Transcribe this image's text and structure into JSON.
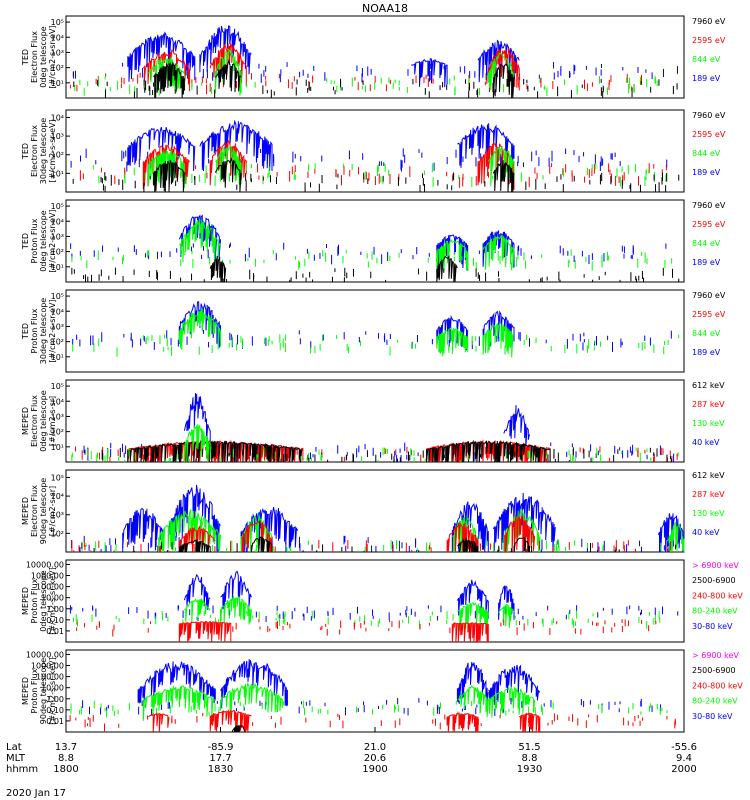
{
  "title": "NOAA18",
  "date_label": "2020 Jan 17",
  "colors": {
    "blue": "#0000ff",
    "red": "#ff0000",
    "green": "#00ff00",
    "black": "#000000",
    "magenta": "#ff00ff"
  },
  "x_axis": {
    "rows": [
      {
        "name": "Lat",
        "values": [
          "13.7",
          "-85.9",
          "21.0",
          "51.5",
          "-55.6"
        ]
      },
      {
        "name": "MLT",
        "values": [
          "8.8",
          "17.7",
          "20.6",
          "8.8",
          "9.4"
        ]
      },
      {
        "name": "hhmm",
        "values": [
          "1800",
          "1830",
          "1900",
          "1930",
          "2000"
        ]
      }
    ],
    "hhmm_range": [
      1800,
      2000
    ]
  },
  "chart_data": [
    {
      "type": "line",
      "panel": 1,
      "ylabel": [
        "TED",
        "Electron Flux",
        "0deg telescope",
        "[#/cm2-s-sr-eV]"
      ],
      "yscale": "log",
      "yticks": [
        "10¹",
        "10²",
        "10³",
        "10⁴",
        "10⁵"
      ],
      "ylim_exp": [
        0,
        5
      ],
      "legend": [
        {
          "text": "7960 eV",
          "color": "black"
        },
        {
          "text": "2595 eV",
          "color": "red"
        },
        {
          "text": "844 eV",
          "color": "green"
        },
        {
          "text": "189 eV",
          "color": "blue"
        }
      ],
      "series": [
        {
          "color": "blue",
          "bursts": [
            [
              1812,
              1825,
              4.0
            ],
            [
              1826,
              1836,
              4.5
            ],
            [
              1907,
              1914,
              2.4
            ],
            [
              1920,
              1928,
              3.5
            ]
          ],
          "bg": 1.8
        },
        {
          "color": "red",
          "bursts": [
            [
              1815,
              1824,
              3.0
            ],
            [
              1828,
              1835,
              3.4
            ],
            [
              1922,
              1928,
              3.2
            ]
          ],
          "bg": 1.2
        },
        {
          "color": "green",
          "bursts": [
            [
              1816,
              1823,
              2.6
            ],
            [
              1829,
              1834,
              3.0
            ],
            [
              1922,
              1927,
              2.8
            ]
          ],
          "bg": 1.0
        },
        {
          "color": "black",
          "bursts": [
            [
              1817,
              1823,
              2.2
            ],
            [
              1829,
              1834,
              2.3
            ],
            [
              1923,
              1927,
              2.2
            ]
          ],
          "bg": 0.8
        }
      ]
    },
    {
      "type": "line",
      "panel": 2,
      "ylabel": [
        "TED",
        "Electron Flux",
        "30deg telescope",
        "[#/cm2-s-sr-eV]"
      ],
      "yscale": "log",
      "yticks": [
        "10¹",
        "10²",
        "10³",
        "10⁴"
      ],
      "ylim_exp": [
        0,
        4.5
      ],
      "legend": [
        {
          "text": "7960 eV",
          "color": "black"
        },
        {
          "text": "2595 eV",
          "color": "red"
        },
        {
          "text": "844 eV",
          "color": "green"
        },
        {
          "text": "189 eV",
          "color": "blue"
        }
      ],
      "series": [
        {
          "color": "blue",
          "bursts": [
            [
              1812,
              1825,
              3.6
            ],
            [
              1826,
              1840,
              3.9
            ],
            [
              1916,
              1927,
              3.8
            ]
          ],
          "bg": 2.0
        },
        {
          "color": "red",
          "bursts": [
            [
              1815,
              1824,
              2.6
            ],
            [
              1828,
              1835,
              2.9
            ],
            [
              1920,
              1927,
              2.7
            ]
          ],
          "bg": 1.2
        },
        {
          "color": "green",
          "bursts": [
            [
              1816,
              1823,
              2.4
            ],
            [
              1829,
              1834,
              2.6
            ],
            [
              1922,
              1927,
              2.6
            ]
          ],
          "bg": 1.2
        },
        {
          "color": "black",
          "bursts": [
            [
              1817,
              1823,
              1.8
            ],
            [
              1829,
              1834,
              1.9
            ],
            [
              1923,
              1927,
              1.8
            ]
          ],
          "bg": 0.7
        }
      ]
    },
    {
      "type": "line",
      "panel": 3,
      "ylabel": [
        "TED",
        "Proton Flux",
        "0deg telescope",
        "[#/cm2-s-sr-eV]"
      ],
      "yscale": "log",
      "yticks": [
        "10¹",
        "10²",
        "10³",
        "10⁴",
        "10⁵"
      ],
      "ylim_exp": [
        0,
        5
      ],
      "legend": [
        {
          "text": "7960 eV",
          "color": "black"
        },
        {
          "text": "2595 eV",
          "color": "red"
        },
        {
          "text": "844 eV",
          "color": "green"
        },
        {
          "text": "189 eV",
          "color": "blue"
        }
      ],
      "series": [
        {
          "color": "blue",
          "bursts": [
            [
              1822,
              1830,
              4.2
            ],
            [
              1912,
              1918,
              2.9
            ],
            [
              1921,
              1927,
              3.2
            ]
          ],
          "bg": 2.0
        },
        {
          "color": "green",
          "bursts": [
            [
              1822,
              1830,
              3.9
            ],
            [
              1912,
              1918,
              2.6
            ],
            [
              1921,
              1927,
              2.9
            ]
          ],
          "bg": 1.6
        },
        {
          "color": "black",
          "bursts": [
            [
              1828,
              1831,
              1.6
            ],
            [
              1912,
              1916,
              1.6
            ]
          ],
          "bg": 0.5
        }
      ]
    },
    {
      "type": "line",
      "panel": 4,
      "ylabel": [
        "TED",
        "Proton Flux",
        "30deg telescope",
        "[#/cm2-s-sr-eV]"
      ],
      "yscale": "log",
      "yticks": [
        "10¹",
        "10²",
        "10³",
        "10⁴",
        "10⁵"
      ],
      "ylim_exp": [
        0,
        5
      ],
      "legend": [
        {
          "text": "7960 eV",
          "color": "black"
        },
        {
          "text": "2595 eV",
          "color": "red"
        },
        {
          "text": "844 eV",
          "color": "green"
        },
        {
          "text": "189 eV",
          "color": "blue"
        }
      ],
      "series": [
        {
          "color": "blue",
          "bursts": [
            [
              1822,
              1830,
              4.3
            ],
            [
              1912,
              1918,
              3.4
            ],
            [
              1921,
              1927,
              3.7
            ]
          ],
          "bg": 2.2
        },
        {
          "color": "green",
          "bursts": [
            [
              1822,
              1830,
              3.9
            ],
            [
              1912,
              1918,
              2.7
            ],
            [
              1921,
              1927,
              3.0
            ]
          ],
          "bg": 1.9
        }
      ]
    },
    {
      "type": "line",
      "panel": 5,
      "ylabel": [
        "MEPED",
        "Electron Flux",
        "0deg telescope",
        "[#/cm2-s-sr]"
      ],
      "yscale": "log",
      "yticks": [
        "10¹",
        "10²",
        "10³",
        "10⁴",
        "10⁵"
      ],
      "ylim_exp": [
        0.5,
        5.5
      ],
      "legend": [
        {
          "text": "612 keV",
          "color": "black"
        },
        {
          "text": "287 keV",
          "color": "red"
        },
        {
          "text": "130 keV",
          "color": "green"
        },
        {
          "text": "40 keV",
          "color": "blue"
        }
      ],
      "series": [
        {
          "color": "blue",
          "bursts": [
            [
              1823,
              1828,
              4.8
            ],
            [
              1925,
              1930,
              4.0
            ]
          ],
          "bg": 1.3
        },
        {
          "color": "red",
          "bursts": [
            [
              1812,
              1846,
              1.8
            ],
            [
              1910,
              1934,
              1.8
            ]
          ],
          "bg": 1.1
        },
        {
          "color": "black",
          "bursts": [
            [
              1812,
              1846,
              1.8
            ],
            [
              1910,
              1934,
              1.8
            ]
          ],
          "bg": 1.0
        },
        {
          "color": "green",
          "bursts": [
            [
              1823,
              1828,
              2.9
            ]
          ],
          "bg": 1.0
        }
      ]
    },
    {
      "type": "line",
      "panel": 6,
      "ylabel": [
        "MEPED",
        "Electron Flux",
        "90deg telescope",
        "[#/cm2-s-sr]"
      ],
      "yscale": "log",
      "yticks": [
        "10²",
        "10³",
        "10⁴",
        "10⁵"
      ],
      "ylim_exp": [
        1.5,
        5.5
      ],
      "legend": [
        {
          "text": "612 keV",
          "color": "black"
        },
        {
          "text": "287 keV",
          "color": "red"
        },
        {
          "text": "130 keV",
          "color": "green"
        },
        {
          "text": "40 keV",
          "color": "blue"
        }
      ],
      "series": [
        {
          "color": "blue",
          "bursts": [
            [
              1811,
              1819,
              3.7
            ],
            [
              1820,
              1830,
              4.8
            ],
            [
              1834,
              1845,
              3.8
            ],
            [
              1915,
              1922,
              4.0
            ],
            [
              1923,
              1935,
              4.4
            ],
            [
              1955,
              2000,
              3.5
            ]
          ],
          "bg": 1.9
        },
        {
          "color": "green",
          "bursts": [
            [
              1818,
              1830,
              3.6
            ],
            [
              1834,
              1840,
              3.4
            ],
            [
              1915,
              1920,
              3.3
            ],
            [
              1925,
              1932,
              3.6
            ],
            [
              1957,
              2000,
              3.0
            ]
          ],
          "bg": 1.7
        },
        {
          "color": "red",
          "bursts": [
            [
              1822,
              1829,
              2.8
            ],
            [
              1834,
              1840,
              3.2
            ],
            [
              1914,
              1920,
              3.0
            ],
            [
              1925,
              1931,
              3.4
            ]
          ],
          "bg": 1.7
        },
        {
          "color": "black",
          "bursts": [
            [
              1822,
              1828,
              2.1
            ],
            [
              1836,
              1840,
              2.3
            ],
            [
              1916,
              1920,
              2.2
            ],
            [
              1927,
              1930,
              2.3
            ]
          ],
          "bg": 1.6
        }
      ]
    },
    {
      "type": "line",
      "panel": 7,
      "ylabel": [
        "MEPED",
        "Proton Flux",
        "0deg telescope",
        "[#/cm2-s-sr-keV]"
      ],
      "yscale": "log",
      "yticks": [
        "0.01",
        "0.10",
        "1.00",
        "10.00",
        "100.00",
        "1000.00",
        "10000.00"
      ],
      "ylim_exp": [
        -2,
        4
      ],
      "legend": [
        {
          "text": "> 6900 keV",
          "color": "magenta"
        },
        {
          "text": "2500-6900",
          "color": "black"
        },
        {
          "text": "240-800 keV",
          "color": "red"
        },
        {
          "text": "80-240 keV",
          "color": "green"
        },
        {
          "text": "30-80 keV",
          "color": "blue"
        }
      ],
      "series": [
        {
          "color": "blue",
          "bursts": [
            [
              1823,
              1828,
              3.0
            ],
            [
              1830,
              1836,
              3.2
            ],
            [
              1916,
              1922,
              2.6
            ],
            [
              1924,
              1927,
              2.3
            ]
          ],
          "bg": 0.3
        },
        {
          "color": "green",
          "bursts": [
            [
              1823,
              1828,
              1.3
            ],
            [
              1830,
              1836,
              1.4
            ],
            [
              1916,
              1922,
              0.9
            ],
            [
              1924,
              1927,
              0.8
            ]
          ],
          "bg": -0.1
        },
        {
          "color": "red",
          "bursts": [
            [
              1822,
              1832,
              -0.5
            ],
            [
              1915,
              1922,
              -0.6
            ]
          ],
          "bg": -0.7
        }
      ]
    },
    {
      "type": "line",
      "panel": 8,
      "ylabel": [
        "MEPED",
        "Proton Flux",
        "90deg telescope",
        "[#/cm2-s-sr-keV]"
      ],
      "yscale": "log",
      "yticks": [
        "0.01",
        "0.10",
        "1.00",
        "10.00",
        "100.00",
        "1000.00",
        "10000.00"
      ],
      "ylim_exp": [
        -2,
        4
      ],
      "legend": [
        {
          "text": "> 6900 keV",
          "color": "magenta"
        },
        {
          "text": "2500-6900",
          "color": "black"
        },
        {
          "text": "240-800 keV",
          "color": "red"
        },
        {
          "text": "80-240 keV",
          "color": "green"
        },
        {
          "text": "30-80 keV",
          "color": "blue"
        }
      ],
      "series": [
        {
          "color": "blue",
          "bursts": [
            [
              1814,
              1829,
              3.2
            ],
            [
              1830,
              1843,
              3.5
            ],
            [
              1916,
              1922,
              3.3
            ],
            [
              1922,
              1932,
              3.0
            ]
          ],
          "bg": 0.1
        },
        {
          "color": "green",
          "bursts": [
            [
              1815,
              1829,
              1.4
            ],
            [
              1830,
              1842,
              1.6
            ],
            [
              1916,
              1922,
              1.4
            ],
            [
              1922,
              1931,
              1.3
            ]
          ],
          "bg": -0.1
        },
        {
          "color": "red",
          "bursts": [
            [
              1816,
              1820,
              -0.6
            ],
            [
              1828,
              1836,
              -0.4
            ],
            [
              1914,
              1920,
              -0.6
            ],
            [
              1928,
              1932,
              -0.6
            ]
          ],
          "bg": -1.0
        },
        {
          "color": "black",
          "bursts": [
            [
              1832,
              1835,
              -1.3
            ]
          ],
          "bg": -2.5
        }
      ]
    }
  ]
}
